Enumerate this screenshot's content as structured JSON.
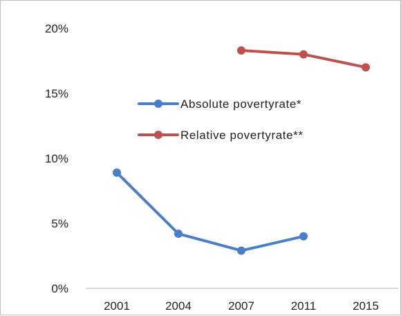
{
  "chart_data": {
    "type": "line",
    "categories": [
      "2001",
      "2004",
      "2007",
      "2011",
      "2015"
    ],
    "series": [
      {
        "name": "Absolute povertyrate*",
        "color": "#4a7ec9",
        "values": [
          8.9,
          4.2,
          2.9,
          4.0,
          null
        ]
      },
      {
        "name": "Relative povertyrate**",
        "color": "#c0504d",
        "values": [
          null,
          null,
          18.3,
          18.0,
          17.0
        ]
      }
    ],
    "y_tick_labels": [
      "0%",
      "5%",
      "10%",
      "15%",
      "20%"
    ],
    "y_tick_values": [
      0,
      5,
      10,
      15,
      20
    ],
    "ylim": [
      0,
      20
    ],
    "grid": false,
    "legend_position": "center",
    "title": "",
    "xlabel": "",
    "ylabel": ""
  }
}
